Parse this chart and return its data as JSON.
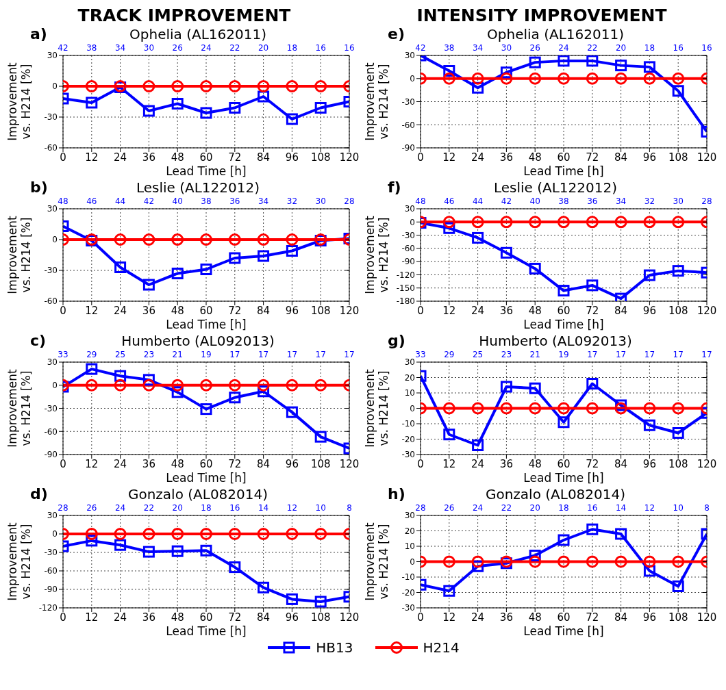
{
  "chart_data": [
    {
      "type": "line",
      "title": "TRACK IMPROVEMENT",
      "subtitle": "Ophelia (AL162011)",
      "xlabel": "Lead Time [h]",
      "ylabel": "Improvement vs. H214 [%]",
      "x": [
        0,
        12,
        24,
        36,
        48,
        60,
        72,
        84,
        96,
        108,
        120
      ],
      "xlim": [
        0,
        120
      ],
      "xticks": [
        0,
        12,
        24,
        36,
        48,
        60,
        72,
        84,
        96,
        108,
        120
      ],
      "ylim": [
        -60,
        30
      ],
      "yticks": [
        -60,
        -30,
        0,
        30
      ],
      "grid": true,
      "annotations": [
        "a)",
        "42",
        "38",
        "34",
        "30",
        "26",
        "24",
        "22",
        "20",
        "18",
        "16",
        "16"
      ],
      "series": [
        {
          "color": "#0000ff",
          "marker": "square",
          "values": [
            -12,
            -16,
            -1,
            -24,
            -17,
            -26,
            -21,
            -10,
            -32,
            -21,
            -15
          ]
        },
        {
          "color": "#ff0000",
          "marker": "circle",
          "values": [
            0,
            0,
            0,
            0,
            0,
            0,
            0,
            0,
            0,
            0,
            0
          ]
        }
      ]
    },
    {
      "type": "line",
      "subtitle": "Leslie (AL122012)",
      "xlabel": "Lead Time [h]",
      "ylabel": "Improvement vs. H214 [%]",
      "x": [
        0,
        12,
        24,
        36,
        48,
        60,
        72,
        84,
        96,
        108,
        120
      ],
      "xlim": [
        0,
        120
      ],
      "xticks": [
        0,
        12,
        24,
        36,
        48,
        60,
        72,
        84,
        96,
        108,
        120
      ],
      "ylim": [
        -60,
        30
      ],
      "yticks": [
        -60,
        -30,
        0,
        30
      ],
      "grid": true,
      "annotations": [
        "b)",
        "48",
        "46",
        "44",
        "42",
        "40",
        "38",
        "36",
        "34",
        "32",
        "30",
        "28"
      ],
      "series": [
        {
          "color": "#0000ff",
          "marker": "square",
          "values": [
            13,
            -1,
            -27,
            -44,
            -33,
            -29,
            -18,
            -16,
            -11,
            -1,
            1
          ]
        },
        {
          "color": "#ff0000",
          "marker": "circle",
          "values": [
            0,
            0,
            0,
            0,
            0,
            0,
            0,
            0,
            0,
            0,
            0
          ]
        }
      ]
    },
    {
      "type": "line",
      "subtitle": "Humberto (AL092013)",
      "xlabel": "Lead Time [h]",
      "ylabel": "Improvement vs. H214 [%]",
      "x": [
        0,
        12,
        24,
        36,
        48,
        60,
        72,
        84,
        96,
        108,
        120
      ],
      "xlim": [
        0,
        120
      ],
      "xticks": [
        0,
        12,
        24,
        36,
        48,
        60,
        72,
        84,
        96,
        108,
        120
      ],
      "ylim": [
        -90,
        30
      ],
      "yticks": [
        -90,
        -60,
        -30,
        0,
        30
      ],
      "grid": true,
      "annotations": [
        "c)",
        "33",
        "29",
        "25",
        "23",
        "21",
        "19",
        "17",
        "17",
        "17",
        "17",
        "17"
      ],
      "series": [
        {
          "color": "#0000ff",
          "marker": "square",
          "values": [
            -2,
            21,
            12,
            7,
            -9,
            -31,
            -16,
            -8,
            -35,
            -67,
            -82
          ]
        },
        {
          "color": "#ff0000",
          "marker": "circle",
          "values": [
            0,
            0,
            0,
            0,
            0,
            0,
            0,
            0,
            0,
            0,
            0
          ]
        }
      ]
    },
    {
      "type": "line",
      "subtitle": "Gonzalo (AL082014)",
      "xlabel": "Lead Time [h]",
      "ylabel": "Improvement vs. H214 [%]",
      "x": [
        0,
        12,
        24,
        36,
        48,
        60,
        72,
        84,
        96,
        108,
        120
      ],
      "xlim": [
        0,
        120
      ],
      "xticks": [
        0,
        12,
        24,
        36,
        48,
        60,
        72,
        84,
        96,
        108,
        120
      ],
      "ylim": [
        -120,
        30
      ],
      "yticks": [
        -120,
        -90,
        -60,
        -30,
        0,
        30
      ],
      "grid": true,
      "annotations": [
        "d)",
        "28",
        "26",
        "24",
        "22",
        "20",
        "18",
        "16",
        "14",
        "12",
        "10",
        "8"
      ],
      "series": [
        {
          "color": "#0000ff",
          "marker": "square",
          "values": [
            -20,
            -11,
            -18,
            -29,
            -28,
            -27,
            -54,
            -87,
            -106,
            -110,
            -102
          ]
        },
        {
          "color": "#ff0000",
          "marker": "circle",
          "values": [
            0,
            0,
            0,
            0,
            0,
            0,
            0,
            0,
            0,
            0,
            0
          ]
        }
      ]
    },
    {
      "type": "line",
      "title": "INTENSITY IMPROVEMENT",
      "subtitle": "Ophelia (AL162011)",
      "xlabel": "Lead Time [h]",
      "ylabel": "Improvement vs. H214 [%]",
      "x": [
        0,
        12,
        24,
        36,
        48,
        60,
        72,
        84,
        96,
        108,
        120
      ],
      "xlim": [
        0,
        120
      ],
      "xticks": [
        0,
        12,
        24,
        36,
        48,
        60,
        72,
        84,
        96,
        108,
        120
      ],
      "ylim": [
        -90,
        30
      ],
      "yticks": [
        -90,
        -60,
        -30,
        0,
        30
      ],
      "grid": true,
      "annotations": [
        "e)",
        "42",
        "38",
        "34",
        "30",
        "26",
        "24",
        "22",
        "20",
        "18",
        "16",
        "16"
      ],
      "series": [
        {
          "color": "#0000ff",
          "marker": "square",
          "values": [
            30,
            10,
            -12,
            8,
            21,
            23,
            23,
            17,
            15,
            -16,
            -69
          ]
        },
        {
          "color": "#ff0000",
          "marker": "circle",
          "values": [
            0,
            0,
            0,
            0,
            0,
            0,
            0,
            0,
            0,
            0,
            0
          ]
        }
      ]
    },
    {
      "type": "line",
      "subtitle": "Leslie (AL122012)",
      "xlabel": "Lead Time [h]",
      "ylabel": "Improvement vs. H214 [%]",
      "x": [
        0,
        12,
        24,
        36,
        48,
        60,
        72,
        84,
        96,
        108,
        120
      ],
      "xlim": [
        0,
        120
      ],
      "xticks": [
        0,
        12,
        24,
        36,
        48,
        60,
        72,
        84,
        96,
        108,
        120
      ],
      "ylim": [
        -180,
        30
      ],
      "yticks": [
        -180,
        -150,
        -120,
        -90,
        -60,
        -30,
        0,
        30
      ],
      "grid": true,
      "annotations": [
        "f)",
        "48",
        "46",
        "44",
        "42",
        "40",
        "38",
        "36",
        "34",
        "32",
        "30",
        "28"
      ],
      "series": [
        {
          "color": "#0000ff",
          "marker": "square",
          "values": [
            -2,
            -14,
            -36,
            -70,
            -106,
            -156,
            -144,
            -174,
            -121,
            -111,
            -115
          ]
        },
        {
          "color": "#ff0000",
          "marker": "circle",
          "values": [
            0,
            0,
            0,
            0,
            0,
            0,
            0,
            0,
            0,
            0,
            0
          ]
        }
      ]
    },
    {
      "type": "line",
      "subtitle": "Humberto (AL092013)",
      "xlabel": "Lead Time [h]",
      "ylabel": "Improvement vs. H214 [%]",
      "x": [
        0,
        12,
        24,
        36,
        48,
        60,
        72,
        84,
        96,
        108,
        120
      ],
      "xlim": [
        0,
        120
      ],
      "xticks": [
        0,
        12,
        24,
        36,
        48,
        60,
        72,
        84,
        96,
        108,
        120
      ],
      "ylim": [
        -30,
        30
      ],
      "yticks": [
        -30,
        -20,
        -10,
        0,
        10,
        20,
        30
      ],
      "grid": true,
      "annotations": [
        "g)",
        "33",
        "29",
        "25",
        "23",
        "21",
        "19",
        "17",
        "17",
        "17",
        "17",
        "17"
      ],
      "series": [
        {
          "color": "#0000ff",
          "marker": "square",
          "values": [
            21,
            -17,
            -24,
            14,
            13,
            -9,
            16,
            2,
            -11,
            -16,
            -3
          ]
        },
        {
          "color": "#ff0000",
          "marker": "circle",
          "values": [
            0,
            0,
            0,
            0,
            0,
            0,
            0,
            0,
            0,
            0,
            0
          ]
        }
      ]
    },
    {
      "type": "line",
      "subtitle": "Gonzalo (AL082014)",
      "xlabel": "Lead Time [h]",
      "ylabel": "Improvement vs. H214 [%]",
      "x": [
        0,
        12,
        24,
        36,
        48,
        60,
        72,
        84,
        96,
        108,
        120
      ],
      "xlim": [
        0,
        120
      ],
      "xticks": [
        0,
        12,
        24,
        36,
        48,
        60,
        72,
        84,
        96,
        108,
        120
      ],
      "ylim": [
        -30,
        30
      ],
      "yticks": [
        -30,
        -20,
        -10,
        0,
        10,
        20,
        30
      ],
      "grid": true,
      "legend": "bottom",
      "annotations": [
        "h)",
        "28",
        "26",
        "24",
        "22",
        "20",
        "18",
        "16",
        "14",
        "12",
        "10",
        "8"
      ],
      "series": [
        {
          "name": "HB13",
          "color": "#0000ff",
          "marker": "square",
          "values": [
            -15,
            -19,
            -3,
            -1,
            4,
            14,
            21,
            18,
            -6,
            -16,
            18
          ]
        },
        {
          "name": "H214",
          "color": "#ff0000",
          "marker": "circle",
          "values": [
            0,
            0,
            0,
            0,
            0,
            0,
            0,
            0,
            0,
            0,
            0
          ]
        }
      ]
    }
  ]
}
